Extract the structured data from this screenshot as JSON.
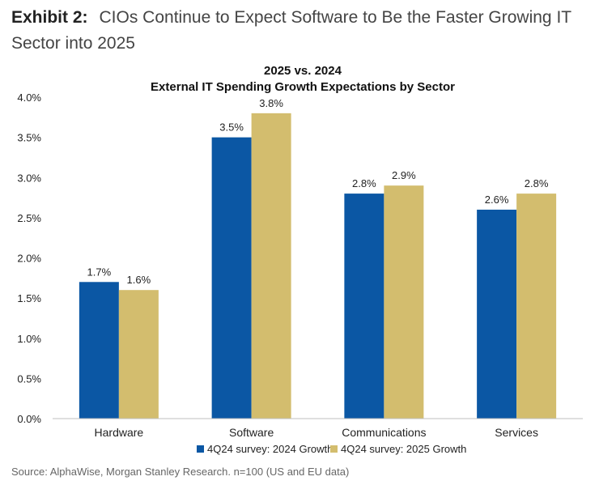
{
  "exhibit": {
    "label": "Exhibit 2:",
    "headline": "CIOs Continue to Expect Software to Be the Faster Growing IT Sector into 2025"
  },
  "chart_data": {
    "type": "bar",
    "title": "2025 vs. 2024",
    "subtitle": "External IT Spending Growth Expectations by Sector",
    "categories": [
      "Hardware",
      "Software",
      "Communications",
      "Services"
    ],
    "series": [
      {
        "name": "4Q24 survey: 2024 Growth",
        "color": "#0b57a4",
        "values": [
          1.7,
          3.5,
          2.8,
          2.6
        ],
        "labels": [
          "1.7%",
          "3.5%",
          "2.8%",
          "2.6%"
        ]
      },
      {
        "name": "4Q24 survey: 2025 Growth",
        "color": "#d3bd6e",
        "values": [
          1.6,
          3.8,
          2.9,
          2.8
        ],
        "labels": [
          "1.6%",
          "3.8%",
          "2.9%",
          "2.8%"
        ]
      }
    ],
    "ylim": [
      0,
      4.0
    ],
    "yticks": [
      0.0,
      0.5,
      1.0,
      1.5,
      2.0,
      2.5,
      3.0,
      3.5,
      4.0
    ],
    "ytick_labels": [
      "0.0%",
      "0.5%",
      "1.0%",
      "1.5%",
      "2.0%",
      "2.5%",
      "3.0%",
      "3.5%",
      "4.0%"
    ],
    "xlabel": "",
    "ylabel": "",
    "grid": false,
    "legend": "bottom"
  },
  "source": "Source: AlphaWise, Morgan Stanley Research. n=100 (US and EU data)"
}
